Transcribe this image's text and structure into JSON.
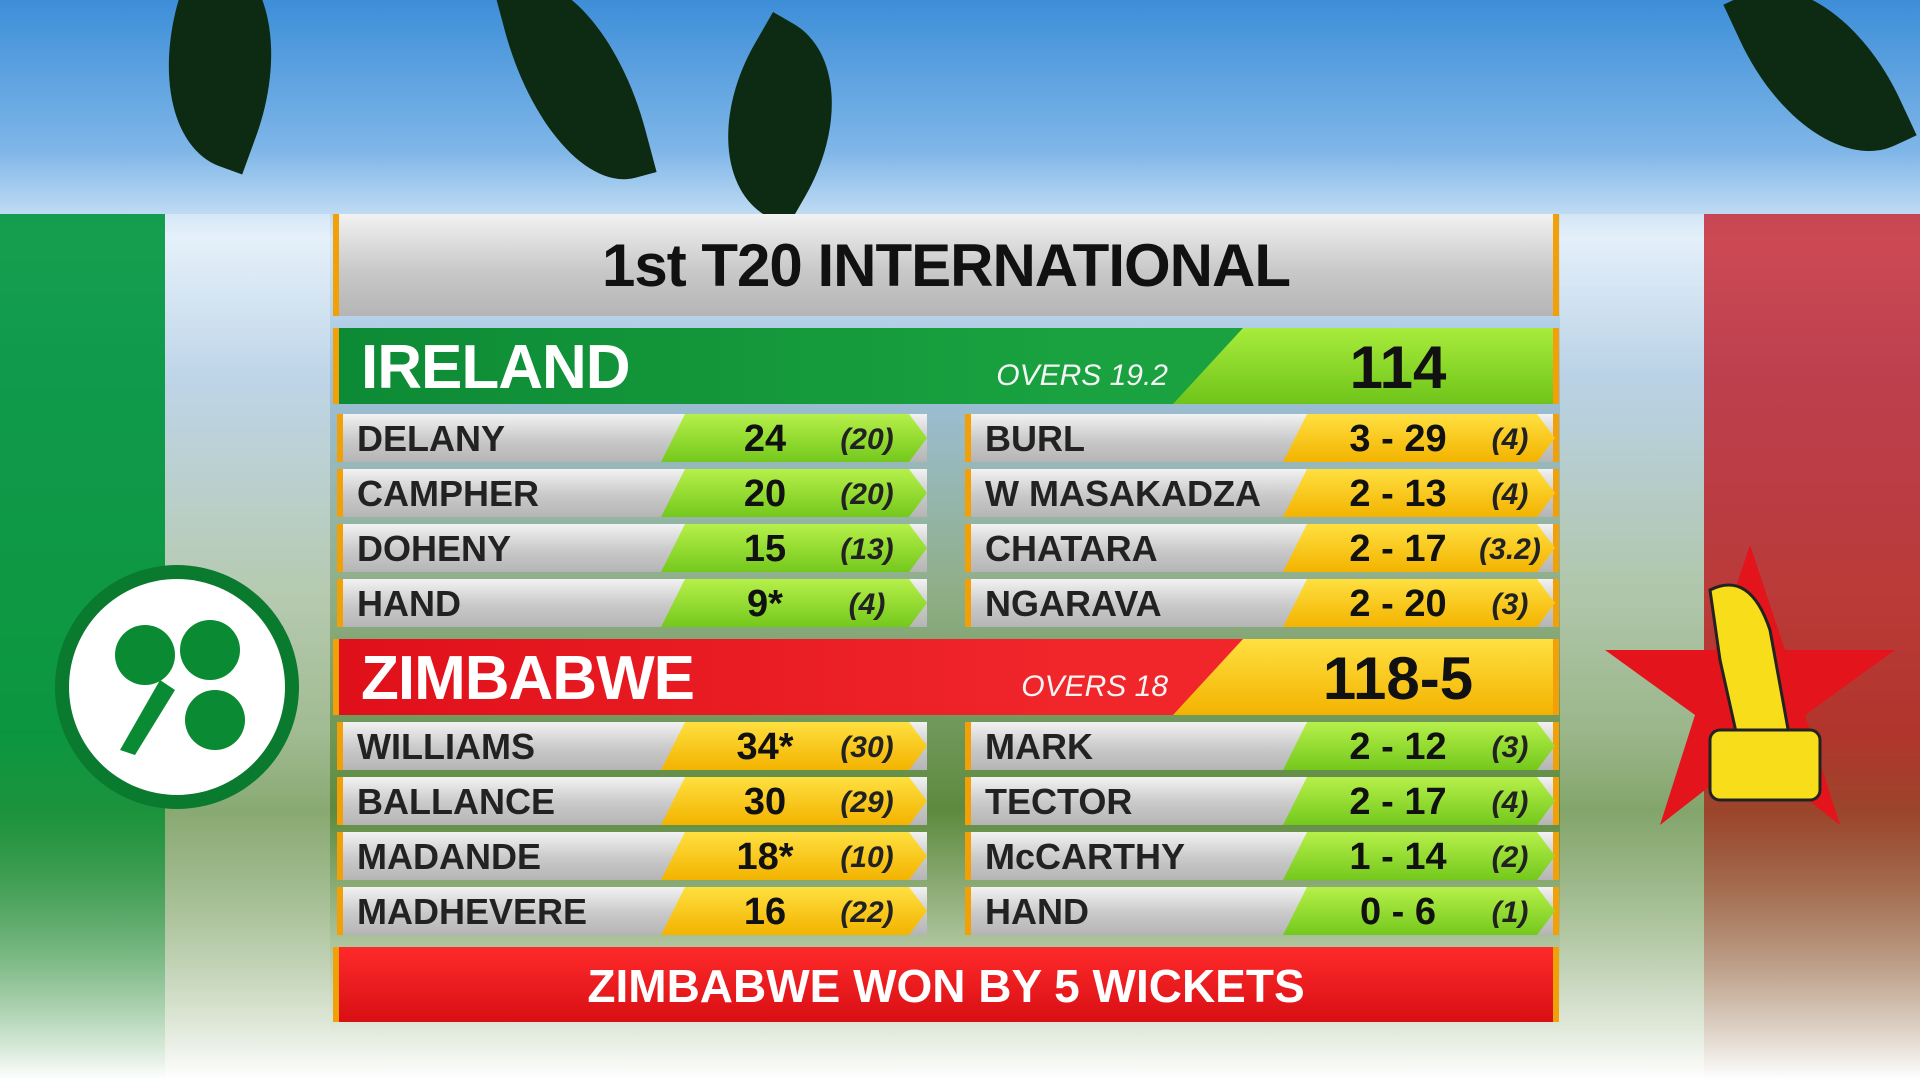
{
  "title": "1st T20 INTERNATIONAL",
  "innings": [
    {
      "team": "IRELAND",
      "overs": "OVERS 19.2",
      "score": "114",
      "batting": [
        {
          "name": "DELANY",
          "runs": "24",
          "balls": "(20)"
        },
        {
          "name": "CAMPHER",
          "runs": "20",
          "balls": "(20)"
        },
        {
          "name": "DOHENY",
          "runs": "15",
          "balls": "(13)"
        },
        {
          "name": "HAND",
          "runs": "9*",
          "balls": "(4)"
        }
      ],
      "bowling": [
        {
          "name": "BURL",
          "figures": "3 - 29",
          "overs": "(4)"
        },
        {
          "name": "W MASAKADZA",
          "figures": "2 - 13",
          "overs": "(4)"
        },
        {
          "name": "CHATARA",
          "figures": "2 - 17",
          "overs": "(3.2)"
        },
        {
          "name": "NGARAVA",
          "figures": "2 - 20",
          "overs": "(3)"
        }
      ]
    },
    {
      "team": "ZIMBABWE",
      "overs": "OVERS 18",
      "score": "118-5",
      "batting": [
        {
          "name": "WILLIAMS",
          "runs": "34*",
          "balls": "(30)"
        },
        {
          "name": "BALLANCE",
          "runs": "30",
          "balls": "(29)"
        },
        {
          "name": "MADANDE",
          "runs": "18*",
          "balls": "(10)"
        },
        {
          "name": "MADHEVERE",
          "runs": "16",
          "balls": "(22)"
        }
      ],
      "bowling": [
        {
          "name": "MARK",
          "figures": "2 - 12",
          "overs": "(3)"
        },
        {
          "name": "TECTOR",
          "figures": "2 - 17",
          "overs": "(4)"
        },
        {
          "name": "McCARTHY",
          "figures": "1 - 14",
          "overs": "(2)"
        },
        {
          "name": "HAND",
          "figures": "0 - 6",
          "overs": "(1)"
        }
      ]
    }
  ],
  "result": "ZIMBABWE WON BY 5 WICKETS"
}
